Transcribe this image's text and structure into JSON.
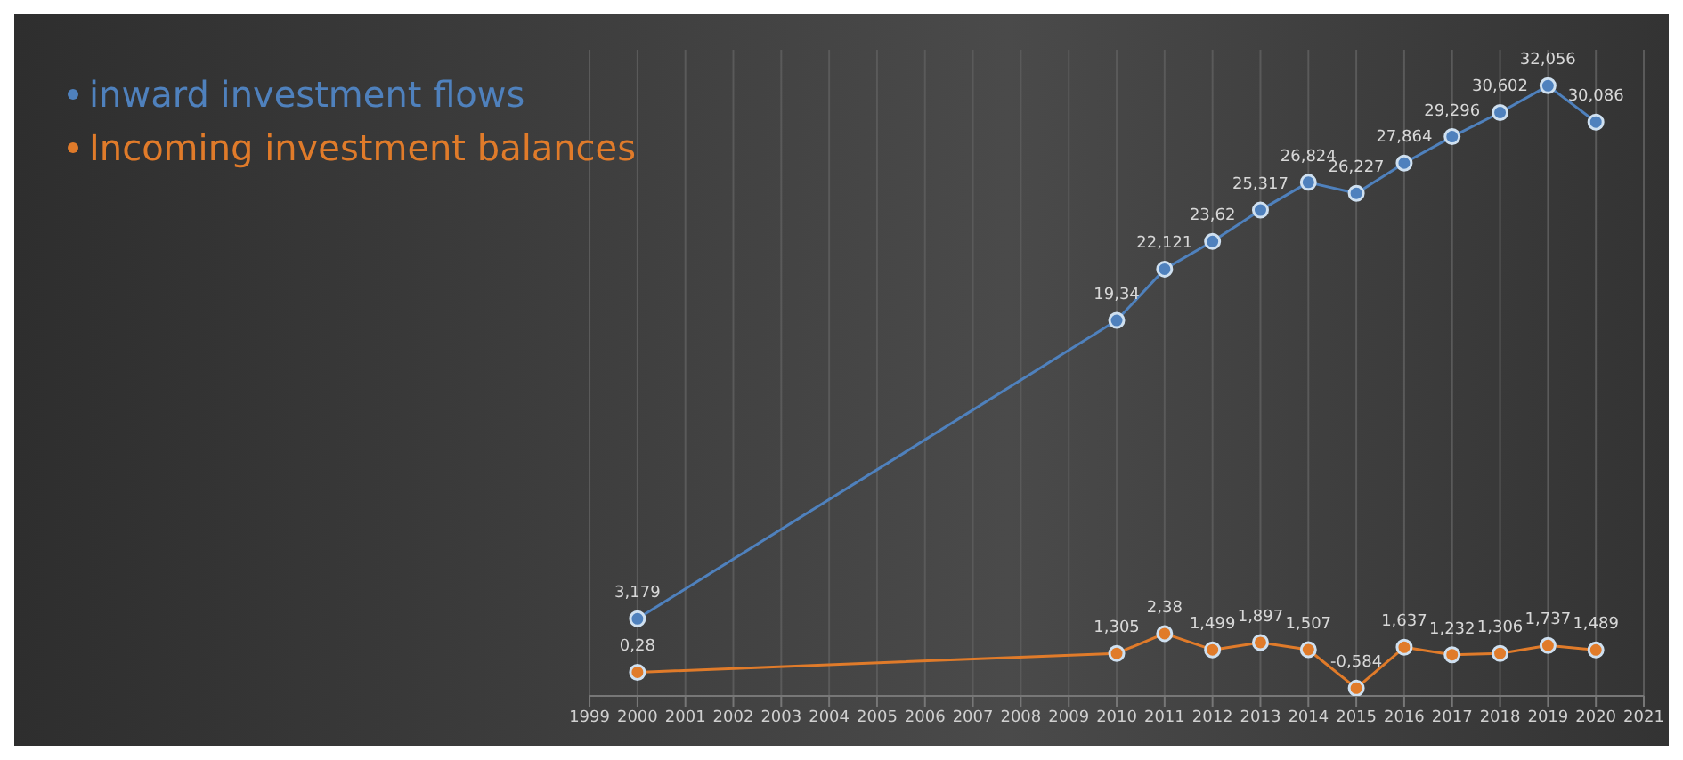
{
  "chart_data": {
    "type": "line",
    "x": [
      2000,
      2010,
      2011,
      2012,
      2013,
      2014,
      2015,
      2016,
      2017,
      2018,
      2019,
      2020
    ],
    "series": [
      {
        "name": "inward investment flows",
        "color": "#4f81bd",
        "values": [
          3.179,
          19.34,
          22.121,
          23.62,
          25.317,
          26.824,
          26.227,
          27.864,
          29.296,
          30.602,
          32.056,
          30.086
        ],
        "value_labels": [
          "3,179",
          "19,34",
          "22,121",
          "23,62",
          "25,317",
          "26,824",
          "26,227",
          "27,864",
          "29,296",
          "30,602",
          "32,056",
          "30,086"
        ]
      },
      {
        "name": "Incoming investment balances",
        "color": "#e07b2a",
        "values": [
          0.28,
          1.305,
          2.38,
          1.499,
          1.897,
          1.507,
          -0.584,
          1.637,
          1.232,
          1.306,
          1.737,
          1.489
        ],
        "value_labels": [
          "0,28",
          "1,305",
          "2,38",
          "1,499",
          "1,897",
          "1,507",
          "-0,584",
          "1,637",
          "1,232",
          "1,306",
          "1,737",
          "1,489"
        ]
      }
    ],
    "xlim": [
      1999,
      2021
    ],
    "xticks": [
      1999,
      2000,
      2001,
      2002,
      2003,
      2004,
      2005,
      2006,
      2007,
      2008,
      2009,
      2010,
      2011,
      2012,
      2013,
      2014,
      2015,
      2016,
      2017,
      2018,
      2019,
      2020,
      2021
    ],
    "ylim": [
      -1,
      34
    ],
    "tick_labels": "x",
    "grid": "x",
    "legend": "top left",
    "marker": "circle",
    "line_style": "solid"
  }
}
